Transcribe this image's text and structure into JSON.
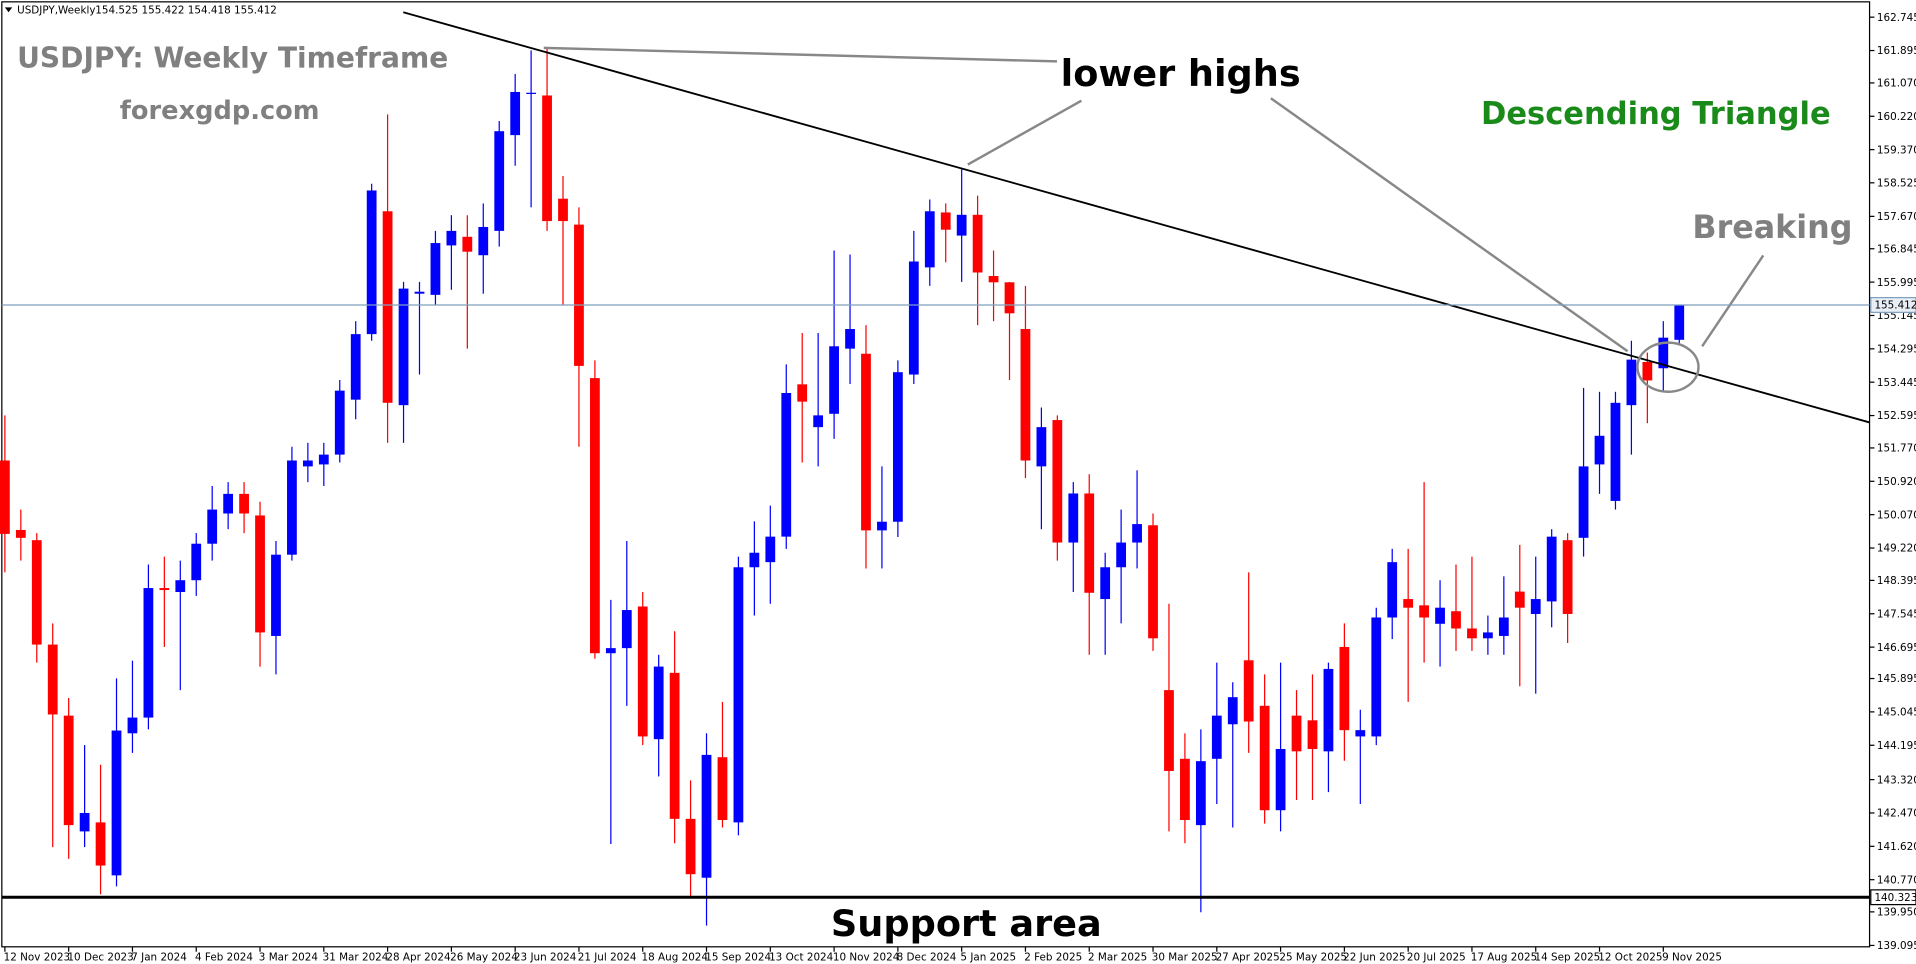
{
  "chart_data": {
    "type": "candlestick",
    "symbol": "USDJPY,Weekly",
    "quote": "154.525 155.422 154.418 155.412",
    "title": "USDJPY: Weekly Timeframe",
    "subtitle": "forexgdp.com",
    "annotations": [
      "lower highs",
      "Descending Triangle",
      "Breaking",
      "Support area"
    ],
    "up_color": "#0000ff",
    "down_color": "#ff0000",
    "current_price": 155.412,
    "current_price_color": "#7f9fbf",
    "support_level": 140.323,
    "support_color": "#000000",
    "categories": [
      "12 Nov 2023",
      null,
      null,
      null,
      "10 Dec 2023",
      null,
      null,
      null,
      "7 Jan 2024",
      null,
      null,
      null,
      "4 Feb 2024",
      null,
      null,
      null,
      "3 Mar 2024",
      null,
      null,
      null,
      "31 Mar 2024",
      null,
      null,
      null,
      "28 Apr 2024",
      null,
      null,
      null,
      "26 May 2024",
      null,
      null,
      null,
      "23 Jun 2024",
      null,
      null,
      null,
      "21 Jul 2024",
      null,
      null,
      null,
      "18 Aug 2024",
      null,
      null,
      null,
      "15 Sep 2024",
      null,
      null,
      null,
      "13 Oct 2024",
      null,
      null,
      null,
      "10 Nov 2024",
      null,
      null,
      null,
      "8 Dec 2024",
      null,
      null,
      null,
      "5 Jan 2025",
      null,
      null,
      null,
      "2 Feb 2025",
      null,
      null,
      null,
      "2 Mar 2025",
      null,
      null,
      null,
      "30 Mar 2025",
      null,
      null,
      null,
      "27 Apr 2025",
      null,
      null,
      null,
      "25 May 2025",
      null,
      null,
      null,
      "22 Jun 2025",
      null,
      null,
      null,
      "20 Jul 2025",
      null,
      null,
      null,
      "17 Aug 2025",
      null,
      null,
      null,
      "14 Sep 2025",
      null,
      null,
      null,
      "12 Oct 2025",
      null,
      null,
      null,
      "9 Nov 2025",
      null
    ],
    "open": [
      151.45,
      149.68,
      149.42,
      146.76,
      144.95,
      142.0,
      142.23,
      140.88,
      144.5,
      144.9,
      148.2,
      148.1,
      148.4,
      149.33,
      150.1,
      150.6,
      150.05,
      146.98,
      149.05,
      151.3,
      151.35,
      151.6,
      153.0,
      154.67,
      157.8,
      152.86,
      155.7,
      155.67,
      156.93,
      157.15,
      156.68,
      157.3,
      159.74,
      160.8,
      160.75,
      158.12,
      157.46,
      153.55,
      146.54,
      146.67,
      147.73,
      144.35,
      146.04,
      142.32,
      140.82,
      143.89,
      142.23,
      148.73,
      148.86,
      149.51,
      153.39,
      152.3,
      152.64,
      154.3,
      154.17,
      149.67,
      149.89,
      153.64,
      156.37,
      157.77,
      157.18,
      157.71,
      156.15,
      155.99,
      154.8,
      151.3,
      152.48,
      149.36,
      150.61,
      147.92,
      148.73,
      149.36,
      149.8,
      145.6,
      143.85,
      142.16,
      143.85,
      144.73,
      146.36,
      145.2,
      142.54,
      144.95,
      144.83,
      144.04,
      146.7,
      144.42,
      144.42,
      147.45,
      147.92,
      147.76,
      147.29,
      147.61,
      147.17,
      146.92,
      146.98,
      148.11,
      147.54,
      147.86,
      149.42,
      149.48,
      151.35,
      150.42,
      152.86,
      153.96,
      153.8,
      154.525
    ],
    "high": [
      152.6,
      150.2,
      149.6,
      147.3,
      145.4,
      144.2,
      143.7,
      145.9,
      146.35,
      148.8,
      149.0,
      148.9,
      149.6,
      150.8,
      150.9,
      150.9,
      150.4,
      149.4,
      151.8,
      151.9,
      151.9,
      153.5,
      155.0,
      158.5,
      160.27,
      156.0,
      156.0,
      157.3,
      157.7,
      157.7,
      158.0,
      160.1,
      161.3,
      161.9,
      161.95,
      158.7,
      157.9,
      154.0,
      147.9,
      149.4,
      148.1,
      146.5,
      147.1,
      143.3,
      144.5,
      145.3,
      149.0,
      149.9,
      150.3,
      153.9,
      154.7,
      154.7,
      156.8,
      156.7,
      154.9,
      151.3,
      154.0,
      157.3,
      158.1,
      158.0,
      158.87,
      158.2,
      156.8,
      156.0,
      155.9,
      152.8,
      152.6,
      150.9,
      151.1,
      149.1,
      150.2,
      151.2,
      150.1,
      147.8,
      144.5,
      144.6,
      146.3,
      145.8,
      148.6,
      146.0,
      146.3,
      145.6,
      146.0,
      146.3,
      147.3,
      145.1,
      147.7,
      149.2,
      149.2,
      150.9,
      148.4,
      148.8,
      149.0,
      147.5,
      148.5,
      149.3,
      149.0,
      149.7,
      149.6,
      153.3,
      153.2,
      153.2,
      154.5,
      154.2,
      155.0,
      155.422
    ],
    "low": [
      148.6,
      148.9,
      146.3,
      141.6,
      141.3,
      141.6,
      140.4,
      140.6,
      144.0,
      144.6,
      146.7,
      145.6,
      148.0,
      148.9,
      149.7,
      149.6,
      146.2,
      146.0,
      148.9,
      150.9,
      150.8,
      151.4,
      152.5,
      154.5,
      151.9,
      151.9,
      153.64,
      155.4,
      155.8,
      154.3,
      155.7,
      156.9,
      158.96,
      157.9,
      157.3,
      155.4,
      151.8,
      146.4,
      141.68,
      145.2,
      144.2,
      143.4,
      141.7,
      140.3,
      139.6,
      142.1,
      141.9,
      147.5,
      147.8,
      149.2,
      151.4,
      151.3,
      152.0,
      153.4,
      148.7,
      148.7,
      149.5,
      153.4,
      155.9,
      156.5,
      156.0,
      154.9,
      155.0,
      153.5,
      151.0,
      149.7,
      148.9,
      148.1,
      146.5,
      146.5,
      147.3,
      148.7,
      146.6,
      142.0,
      141.7,
      139.94,
      142.7,
      142.1,
      144.0,
      142.2,
      142.0,
      142.8,
      142.8,
      143.0,
      143.8,
      142.7,
      144.2,
      146.9,
      145.3,
      146.3,
      146.2,
      146.6,
      146.6,
      146.5,
      146.5,
      145.7,
      145.51,
      147.2,
      146.8,
      149.0,
      150.6,
      150.2,
      151.6,
      152.4,
      153.2,
      154.418
    ],
    "close": [
      149.58,
      149.48,
      146.76,
      144.98,
      142.16,
      142.47,
      141.13,
      144.57,
      144.9,
      148.2,
      148.15,
      148.4,
      149.33,
      150.2,
      150.6,
      150.1,
      147.07,
      149.05,
      151.45,
      151.45,
      151.6,
      153.23,
      154.67,
      158.33,
      152.92,
      155.83,
      155.75,
      156.99,
      157.3,
      156.77,
      157.4,
      159.84,
      160.84,
      160.82,
      157.55,
      157.55,
      153.86,
      146.54,
      146.67,
      147.64,
      144.42,
      146.2,
      142.32,
      140.91,
      143.95,
      142.29,
      148.73,
      149.1,
      149.51,
      153.17,
      152.95,
      152.6,
      154.36,
      154.8,
      149.67,
      149.89,
      153.7,
      156.52,
      157.8,
      157.33,
      157.71,
      156.24,
      155.99,
      155.2,
      151.45,
      152.3,
      149.36,
      150.61,
      148.08,
      148.73,
      149.36,
      149.83,
      146.92,
      143.54,
      142.29,
      143.79,
      144.95,
      145.42,
      144.8,
      142.54,
      144.1,
      144.04,
      144.1,
      146.14,
      144.58,
      144.58,
      147.45,
      148.86,
      147.7,
      147.45,
      147.7,
      147.17,
      146.92,
      147.07,
      147.45,
      147.7,
      147.92,
      149.51,
      147.54,
      151.3,
      152.08,
      152.92,
      154.02,
      153.49,
      154.58,
      155.412
    ],
    "ylim": [
      139.06,
      163.12
    ],
    "yticks": [
      162.745,
      161.895,
      {
        "value": 161.07,
        "label": "161.070"
      },
      {
        "value": 160.22,
        "label": "160.220"
      },
      {
        "value": 159.37,
        "label": "159.370"
      },
      158.525,
      {
        "value": 157.67,
        "label": "157.670"
      },
      156.845,
      155.995,
      155.145,
      154.295,
      153.445,
      152.595,
      {
        "value": 151.77,
        "label": "151.770"
      },
      {
        "value": 150.92,
        "label": "150.920"
      },
      {
        "value": 150.07,
        "label": "150.070"
      },
      {
        "value": 149.22,
        "label": "149.220"
      },
      148.395,
      147.545,
      146.695,
      145.895,
      145.045,
      144.195,
      {
        "value": 143.32,
        "label": "143.320"
      },
      {
        "value": 142.47,
        "label": "142.470"
      },
      {
        "value": 141.62,
        "label": "141.620"
      },
      {
        "value": 140.77,
        "label": "140.770"
      },
      {
        "value": 139.95,
        "label": "139.950"
      },
      139.095
    ]
  }
}
